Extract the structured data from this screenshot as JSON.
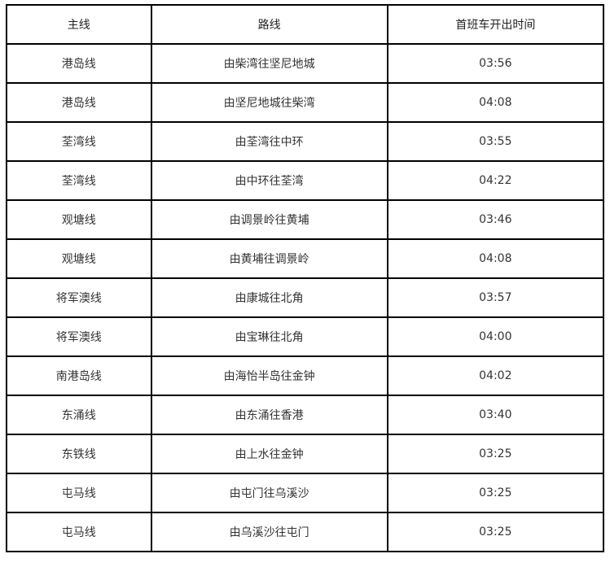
{
  "table": {
    "headers": [
      "主线",
      "路线",
      "首班车开出时间"
    ],
    "rows": [
      [
        "港岛线",
        "由柴湾往坚尼地城",
        "03:56"
      ],
      [
        "港岛线",
        "由坚尼地城往柴湾",
        "04:08"
      ],
      [
        "荃湾线",
        "由荃湾往中环",
        "03:55"
      ],
      [
        "荃湾线",
        "由中环往荃湾",
        "04:22"
      ],
      [
        "观塘线",
        "由调景岭往黄埔",
        "03:46"
      ],
      [
        "观塘线",
        "由黄埔往调景岭",
        "04:08"
      ],
      [
        "将军澳线",
        "由康城往北角",
        "03:57"
      ],
      [
        "将军澳线",
        "由宝琳往北角",
        "04:00"
      ],
      [
        "南港岛线",
        "由海怡半岛往金钟",
        "04:02"
      ],
      [
        "东涌线",
        "由东涌往香港",
        "03:40"
      ],
      [
        "东铁线",
        "由上水往金钟",
        "03:25"
      ],
      [
        "屯马线",
        "由屯门往乌溪沙",
        "03:25"
      ],
      [
        "屯马线",
        "由乌溪沙往屯门",
        "03:25"
      ]
    ]
  }
}
